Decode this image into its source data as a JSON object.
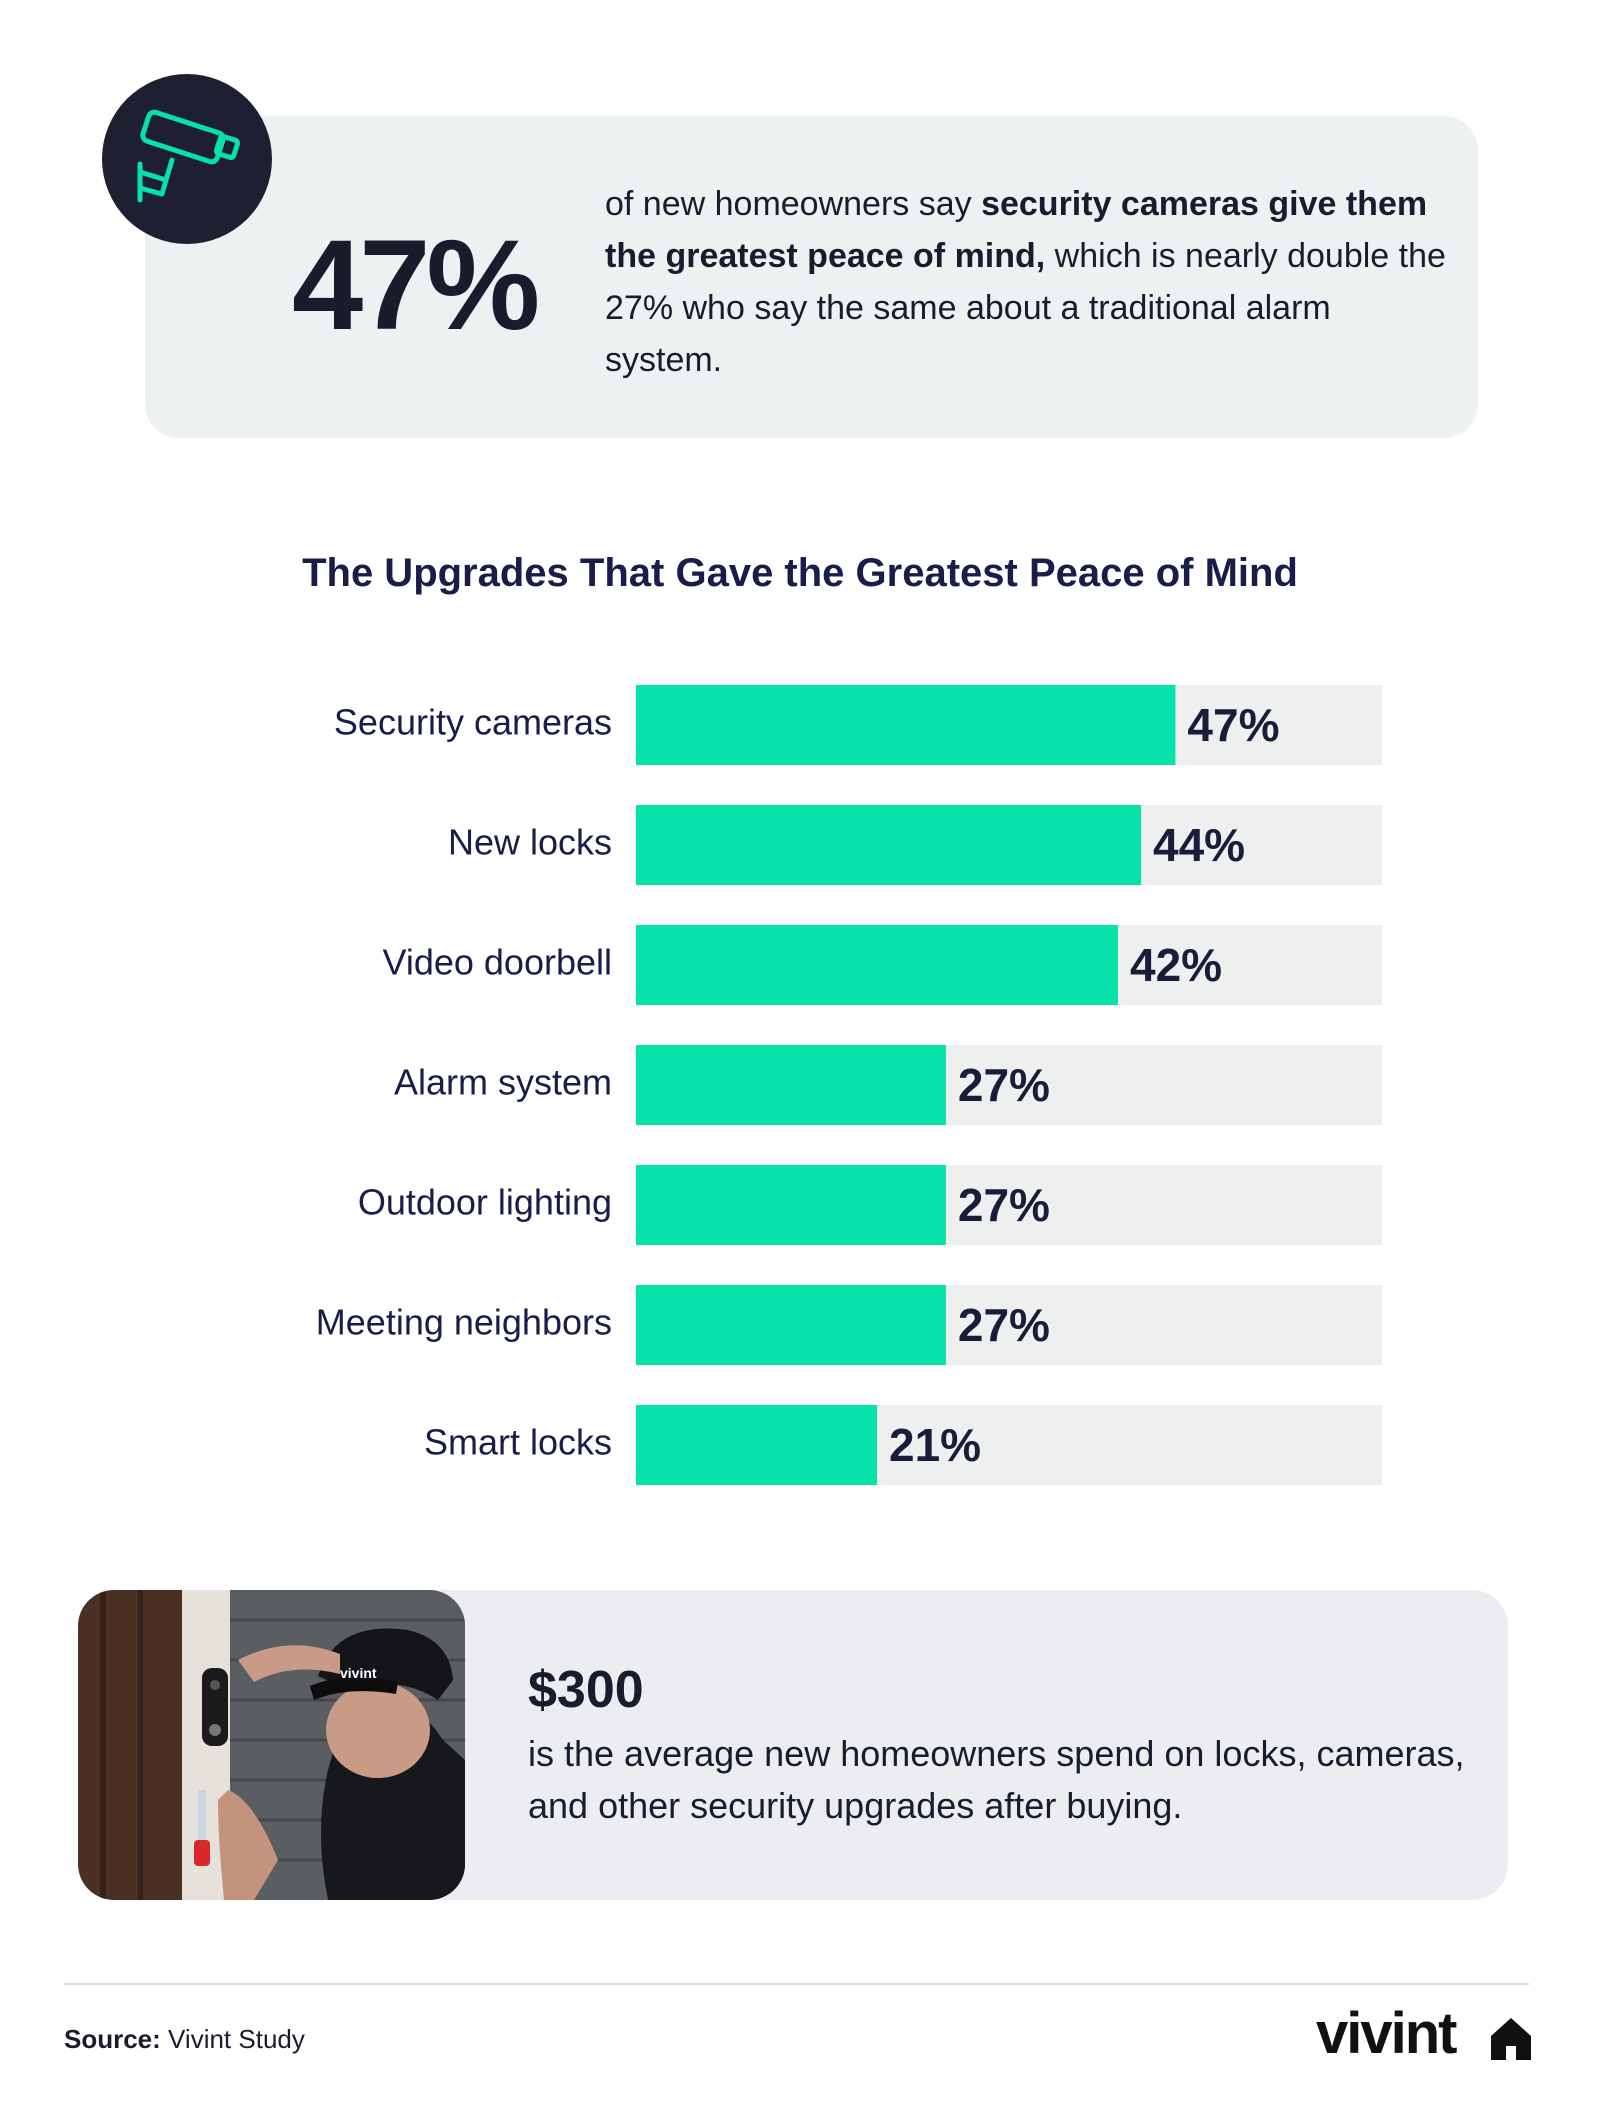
{
  "stat_card": {
    "icon": "security-camera-icon",
    "big_number": "47%",
    "text_intro": "of new homeowners say ",
    "text_bold": "security cameras give them the greatest peace of mind,",
    "text_rest": " which is nearly double the 27% who say the same about a traditional alarm system."
  },
  "chart_data": {
    "type": "bar",
    "orientation": "horizontal",
    "title": "The Upgrades That Gave the Greatest Peace of Mind",
    "categories": [
      "Security cameras",
      "New locks",
      "Video doorbell",
      "Alarm system",
      "Outdoor lighting",
      "Meeting neighbors",
      "Smart locks"
    ],
    "values": [
      47,
      44,
      42,
      27,
      27,
      27,
      21
    ],
    "value_labels": [
      "47%",
      "44%",
      "42%",
      "27%",
      "27%",
      "27%",
      "21%"
    ],
    "xlim": [
      0,
      65
    ],
    "grid": false,
    "legend": "none",
    "colors": {
      "bar": "#05e2aa",
      "track": "#eef0f0"
    }
  },
  "spend_card": {
    "image": "technician-installing-video-doorbell-photo",
    "amount": "$300",
    "text": "is the average new homeowners spend on locks, cameras, and other security upgrades after buying."
  },
  "footer": {
    "source_label": "Source:",
    "source_value": "Vivint Study",
    "logo_text": "vivint",
    "logo_icon": "house-icon"
  }
}
